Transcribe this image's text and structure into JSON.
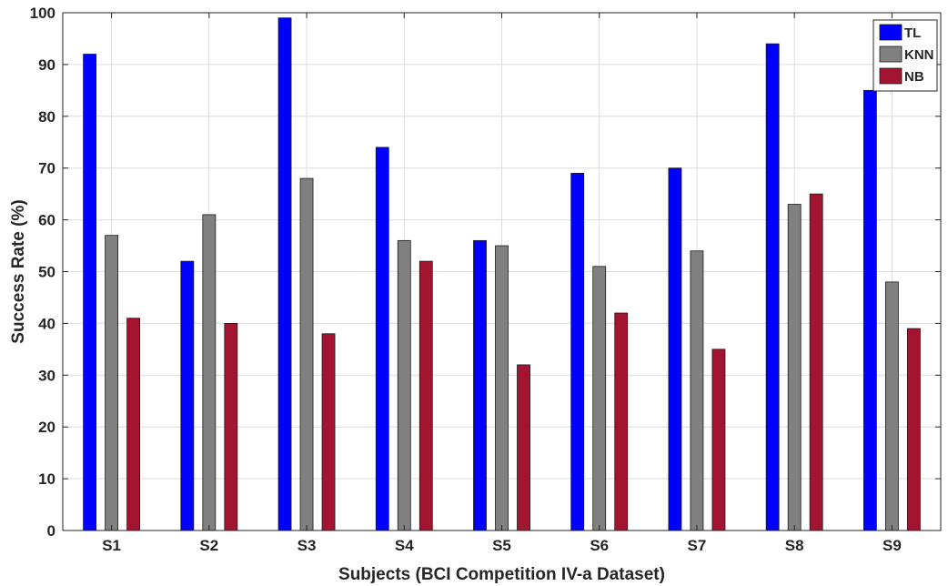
{
  "chart_data": {
    "type": "bar",
    "xlabel": "Subjects (BCI Competition IV-a Dataset)",
    "ylabel": "Success Rate (%)",
    "ylim": [
      0,
      100
    ],
    "yticks": [
      0,
      10,
      20,
      30,
      40,
      50,
      60,
      70,
      80,
      90,
      100
    ],
    "grid": true,
    "legend_position": "top-right",
    "categories": [
      "S1",
      "S2",
      "S3",
      "S4",
      "S5",
      "S6",
      "S7",
      "S8",
      "S9"
    ],
    "series": [
      {
        "name": "TL",
        "color": "#0000FF",
        "values": [
          92,
          52,
          99,
          74,
          56,
          69,
          70,
          94,
          85
        ]
      },
      {
        "name": "KNN",
        "color": "#808080",
        "values": [
          57,
          61,
          68,
          56,
          55,
          51,
          54,
          63,
          48
        ]
      },
      {
        "name": "NB",
        "color": "#A2142F",
        "values": [
          41,
          40,
          38,
          52,
          32,
          42,
          35,
          65,
          39
        ]
      }
    ]
  }
}
